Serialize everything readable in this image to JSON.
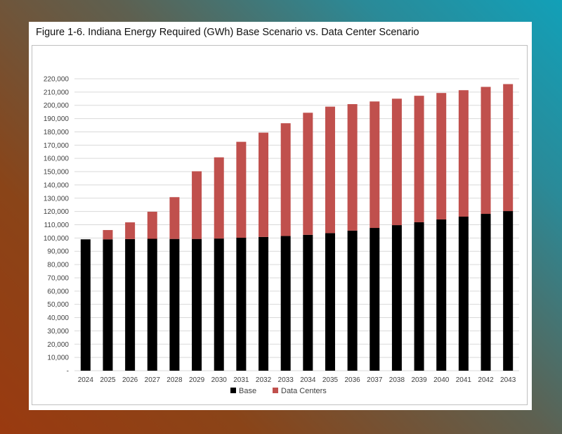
{
  "figure_title": "Figure 1-6. Indiana Energy Required (GWh) Base Scenario vs. Data Center Scenario",
  "colors": {
    "base": "#000000",
    "data_centers": "#c0504d",
    "grid": "#d9d9d9",
    "axis_text": "#404040"
  },
  "chart_data": {
    "type": "bar",
    "stacked": true,
    "title": "Figure 1-6. Indiana Energy Required (GWh) Base Scenario vs. Data Center Scenario",
    "xlabel": "",
    "ylabel": "",
    "categories": [
      "2024",
      "2025",
      "2026",
      "2027",
      "2028",
      "2029",
      "2030",
      "2031",
      "2032",
      "2033",
      "2034",
      "2035",
      "2036",
      "2037",
      "2038",
      "2039",
      "2040",
      "2041",
      "2042",
      "2043"
    ],
    "series": [
      {
        "name": "Base",
        "color": "#000000",
        "values": [
          99000,
          99000,
          99200,
          99400,
          99300,
          99300,
          99600,
          100200,
          100800,
          101500,
          102400,
          103700,
          105600,
          107600,
          109700,
          111900,
          114000,
          116100,
          118200,
          120300
        ]
      },
      {
        "name": "Data Centers",
        "color": "#c0504d",
        "values": [
          0,
          7000,
          12600,
          20400,
          31500,
          51000,
          61200,
          72300,
          78600,
          85000,
          92000,
          95300,
          95300,
          95300,
          95300,
          95300,
          95300,
          95300,
          95700,
          95700
        ]
      }
    ],
    "ylim": [
      0,
      220000
    ],
    "yticks": [
      "-",
      "10,000",
      "20,000",
      "30,000",
      "40,000",
      "50,000",
      "60,000",
      "70,000",
      "80,000",
      "90,000",
      "100,000",
      "110,000",
      "120,000",
      "130,000",
      "140,000",
      "150,000",
      "160,000",
      "170,000",
      "180,000",
      "190,000",
      "200,000",
      "210,000",
      "220,000"
    ],
    "grid": true,
    "legend": {
      "position": "bottom",
      "entries": [
        "Base",
        "Data Centers"
      ]
    }
  }
}
